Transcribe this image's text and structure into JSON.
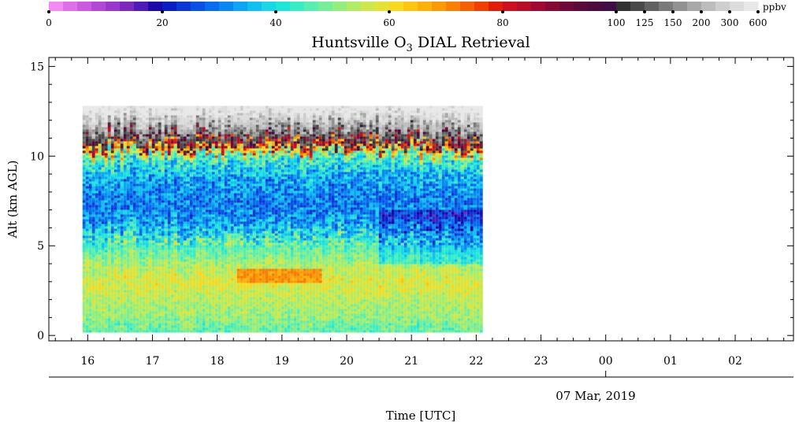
{
  "chart_data": {
    "type": "heatmap",
    "title_prefix": "Huntsville O",
    "title_sub": "3",
    "title_suffix": " DIAL Retrieval",
    "ylabel": "Alt (km AGL)",
    "xlabel": "Time [UTC]",
    "date_label": "07 Mar, 2019",
    "y_ticks": [
      "0",
      "5",
      "10",
      "15"
    ],
    "y_tick_values": [
      0,
      5,
      10,
      15
    ],
    "ylim": [
      -0.3,
      15.5
    ],
    "x_ticks": [
      "16",
      "17",
      "18",
      "19",
      "20",
      "21",
      "22",
      "23",
      "00",
      "01",
      "02"
    ],
    "x_tick_values": [
      16,
      17,
      18,
      19,
      20,
      21,
      22,
      23,
      24,
      25,
      26
    ],
    "xlim": [
      15.4,
      26.9
    ],
    "data_x_range": [
      15.92,
      22.08
    ],
    "data_alt_range": [
      0.2,
      12.8
    ],
    "date_boundary_hour": 24,
    "colorbar": {
      "unit": "ppbv",
      "tick_labels": [
        "0",
        "20",
        "40",
        "60",
        "80",
        "100",
        "125",
        "150",
        "200",
        "300",
        "600"
      ],
      "tick_indices": [
        0,
        8,
        16,
        24,
        32,
        40,
        42,
        44,
        46,
        48,
        50
      ],
      "colors": [
        "#f48af4",
        "#e070ea",
        "#cc5ae0",
        "#b248d6",
        "#9a38cc",
        "#7e28c0",
        "#4e1ab8",
        "#1a08a8",
        "#0a1ec2",
        "#0c38d8",
        "#0a52e6",
        "#086cee",
        "#0a88f2",
        "#0ca4f4",
        "#10c0f0",
        "#18d8e8",
        "#20e6da",
        "#3aecc6",
        "#58eeb0",
        "#76ee98",
        "#94ee7e",
        "#b2ec62",
        "#cce84a",
        "#e4e234",
        "#f6d81e",
        "#fcc610",
        "#fcb00a",
        "#fc9806",
        "#fa7e04",
        "#f66002",
        "#f04002",
        "#e01e0a",
        "#cc1020",
        "#b80c2a",
        "#a00a30",
        "#880834",
        "#700838",
        "#5c0a3c",
        "#4c0c40",
        "#3e0e44",
        "#323232",
        "#4a4a4a",
        "#626262",
        "#7a7a7a",
        "#929292",
        "#a8a8a8",
        "#bcbcbc",
        "#cecece",
        "#dcdcdc",
        "#e8e8e8"
      ]
    },
    "mean_profile": [
      {
        "alt": 0.3,
        "o3": 45
      },
      {
        "alt": 1.0,
        "o3": 50
      },
      {
        "alt": 2.0,
        "o3": 53
      },
      {
        "alt": 3.0,
        "o3": 57
      },
      {
        "alt": 4.0,
        "o3": 52
      },
      {
        "alt": 5.0,
        "o3": 44
      },
      {
        "alt": 6.0,
        "o3": 33
      },
      {
        "alt": 7.0,
        "o3": 27
      },
      {
        "alt": 8.0,
        "o3": 28
      },
      {
        "alt": 9.0,
        "o3": 33
      },
      {
        "alt": 10.0,
        "o3": 42
      },
      {
        "alt": 10.6,
        "o3": 78
      },
      {
        "alt": 11.2,
        "o3": 110
      },
      {
        "alt": 11.8,
        "o3": 180
      },
      {
        "alt": 12.8,
        "o3": 400
      }
    ],
    "enhancement": {
      "hour_range": [
        18.3,
        19.6
      ],
      "alt_range": [
        2.9,
        3.8
      ],
      "peak_o3": 68
    }
  }
}
